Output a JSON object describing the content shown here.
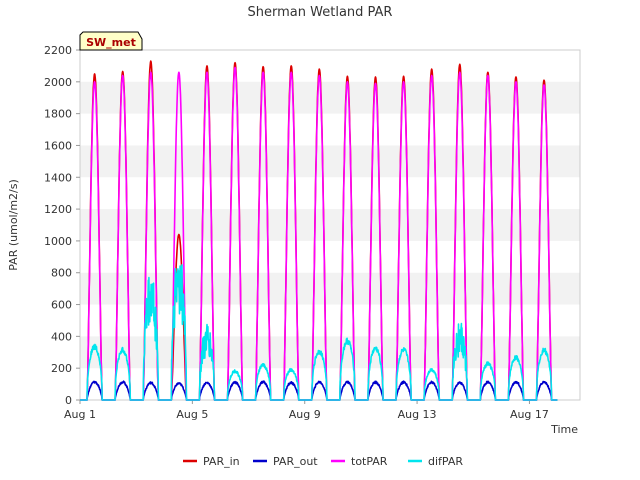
{
  "chart_data": {
    "type": "line",
    "title": "Sherman Wetland PAR",
    "xlabel": "Time",
    "ylabel": "PAR (umol/m2/s)",
    "ylim": [
      0,
      2200
    ],
    "xlim_days": [
      1,
      18.8
    ],
    "x_ticks": [
      {
        "day": 1,
        "label": "Aug 1"
      },
      {
        "day": 5,
        "label": "Aug 5"
      },
      {
        "day": 9,
        "label": "Aug 9"
      },
      {
        "day": 13,
        "label": "Aug 13"
      },
      {
        "day": 17,
        "label": "Aug 17"
      }
    ],
    "y_ticks": [
      0,
      200,
      400,
      600,
      800,
      1000,
      1200,
      1400,
      1600,
      1800,
      2000,
      2200
    ],
    "grid": "horizontal-bands",
    "station_label": "SW_met",
    "legend_position": "bottom",
    "series": [
      {
        "name": "PAR_in",
        "color": "#dd0000",
        "daily_peak": [
          2050,
          2065,
          2130,
          1040,
          2100,
          2120,
          2095,
          2100,
          2080,
          2035,
          2030,
          2035,
          2080,
          2110,
          2060,
          2030,
          2010
        ]
      },
      {
        "name": "PAR_out",
        "color": "#0000cc",
        "daily_peak": [
          120,
          120,
          115,
          110,
          115,
          118,
          120,
          115,
          120,
          120,
          118,
          118,
          118,
          115,
          120,
          120,
          120
        ]
      },
      {
        "name": "totPAR",
        "color": "#ff00ff",
        "daily_peak": [
          2000,
          2040,
          2060,
          2060,
          2060,
          2090,
          2060,
          2060,
          2040,
          2000,
          1990,
          2000,
          2040,
          2060,
          2040,
          2000,
          1980
        ]
      },
      {
        "name": "difPAR",
        "color": "#00e5ee",
        "daily_peak": [
          350,
          330,
          820,
          980,
          480,
          190,
          230,
          200,
          320,
          390,
          340,
          330,
          200,
          500,
          240,
          280,
          330
        ]
      }
    ]
  }
}
